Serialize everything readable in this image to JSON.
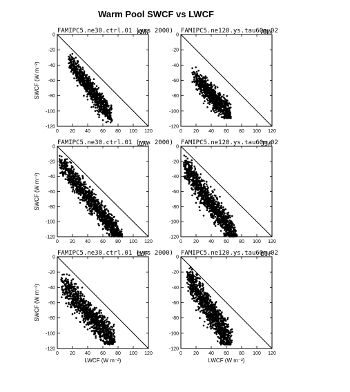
{
  "figure_title": "Warm Pool SWCF vs LWCF",
  "x_axis_label": "LWCF (W m⁻²)",
  "y_axis_label": "SWCF (W m⁻²)",
  "chart_data": [
    {
      "type": "scatter",
      "panel": "ctrl-ANN",
      "title_left": "FAMIPC5.ne30.ctrl.01 (yrs 2000)",
      "title_right": "ANN",
      "xlim": [
        0,
        120
      ],
      "ylim": [
        -120,
        0
      ],
      "xticks": [
        0,
        20,
        40,
        60,
        80,
        100,
        120
      ],
      "yticks": [
        0,
        -20,
        -40,
        -60,
        -80,
        -100,
        -120
      ],
      "reference_line": [
        [
          0,
          0
        ],
        [
          120,
          -120
        ]
      ],
      "cloud": {
        "n": 750,
        "x_range": [
          15,
          72
        ],
        "y_range": [
          -32,
          -115
        ],
        "center_line": [
          [
            16,
            -33
          ],
          [
            70,
            -104
          ]
        ],
        "spread": 7
      },
      "points": [
        [
          15,
          -32
        ],
        [
          16,
          -33
        ],
        [
          18,
          -37
        ],
        [
          20,
          -40
        ],
        [
          22,
          -42
        ],
        [
          25,
          -46
        ],
        [
          28,
          -50
        ],
        [
          30,
          -54
        ],
        [
          33,
          -58
        ],
        [
          35,
          -62
        ],
        [
          38,
          -66
        ],
        [
          40,
          -70
        ],
        [
          43,
          -74
        ],
        [
          45,
          -78
        ],
        [
          48,
          -82
        ],
        [
          50,
          -86
        ],
        [
          53,
          -90
        ],
        [
          55,
          -94
        ],
        [
          58,
          -98
        ],
        [
          60,
          -100
        ],
        [
          62,
          -103
        ],
        [
          65,
          -106
        ],
        [
          68,
          -108
        ],
        [
          72,
          -112
        ],
        [
          40,
          -85
        ],
        [
          45,
          -95
        ],
        [
          50,
          -100
        ],
        [
          55,
          -108
        ],
        [
          35,
          -80
        ],
        [
          60,
          -112
        ]
      ]
    },
    {
      "type": "scatter",
      "panel": "exp-ANN",
      "title_left": "FAMIPC5.ne120.ys.tau60m.02",
      "title_right": "ANN",
      "xlim": [
        0,
        120
      ],
      "ylim": [
        -120,
        0
      ],
      "xticks": [
        0,
        20,
        40,
        60,
        80,
        100,
        120
      ],
      "yticks": [
        0,
        -20,
        -40,
        -60,
        -80,
        -100,
        -120
      ],
      "reference_line": [
        [
          0,
          0
        ],
        [
          120,
          -120
        ]
      ],
      "cloud": {
        "n": 750,
        "x_range": [
          15,
          66
        ],
        "y_range": [
          -50,
          -110
        ],
        "center_line": [
          [
            17,
            -52
          ],
          [
            64,
            -102
          ]
        ],
        "spread": 8
      },
      "points": [
        [
          15,
          -50
        ],
        [
          17,
          -52
        ],
        [
          20,
          -55
        ],
        [
          22,
          -60
        ],
        [
          25,
          -65
        ],
        [
          28,
          -68
        ],
        [
          30,
          -72
        ],
        [
          33,
          -75
        ],
        [
          35,
          -80
        ],
        [
          38,
          -83
        ],
        [
          40,
          -86
        ],
        [
          43,
          -90
        ],
        [
          45,
          -93
        ],
        [
          48,
          -96
        ],
        [
          50,
          -98
        ],
        [
          53,
          -100
        ],
        [
          55,
          -103
        ],
        [
          58,
          -105
        ],
        [
          60,
          -107
        ],
        [
          63,
          -106
        ],
        [
          65,
          -104
        ],
        [
          30,
          -90
        ],
        [
          35,
          -95
        ],
        [
          40,
          -100
        ],
        [
          45,
          -102
        ],
        [
          25,
          -78
        ]
      ]
    },
    {
      "type": "scatter",
      "panel": "ctrl-JJA",
      "title_left": "FAMIPC5.ne30.ctrl.01 (yrs 2000)",
      "title_right": "JJA",
      "xlim": [
        0,
        120
      ],
      "ylim": [
        -120,
        0
      ],
      "xticks": [
        0,
        20,
        40,
        60,
        80,
        100,
        120
      ],
      "yticks": [
        0,
        -20,
        -40,
        -60,
        -80,
        -100,
        -120
      ],
      "reference_line": [
        [
          0,
          0
        ],
        [
          120,
          -120
        ]
      ],
      "cloud": {
        "n": 1100,
        "x_range": [
          3,
          86
        ],
        "y_range": [
          -17,
          -120
        ],
        "center_line": [
          [
            4,
            -19
          ],
          [
            82,
            -118
          ]
        ],
        "spread": 8
      },
      "points": [
        [
          3,
          -17
        ],
        [
          5,
          -19
        ],
        [
          8,
          -22
        ],
        [
          10,
          -26
        ],
        [
          13,
          -30
        ],
        [
          15,
          -35
        ],
        [
          18,
          -40
        ],
        [
          20,
          -44
        ],
        [
          25,
          -50
        ],
        [
          30,
          -56
        ],
        [
          35,
          -62
        ],
        [
          40,
          -68
        ],
        [
          45,
          -74
        ],
        [
          50,
          -80
        ],
        [
          55,
          -86
        ],
        [
          60,
          -92
        ],
        [
          65,
          -98
        ],
        [
          70,
          -104
        ],
        [
          75,
          -110
        ],
        [
          80,
          -115
        ],
        [
          85,
          -118
        ],
        [
          20,
          -60
        ],
        [
          30,
          -75
        ],
        [
          40,
          -85
        ],
        [
          55,
          -105
        ],
        [
          60,
          -110
        ]
      ]
    },
    {
      "type": "scatter",
      "panel": "exp-JJA",
      "title_left": "FAMIPC5.ne120.ys.tau60m.02",
      "title_right": "JJA",
      "xlim": [
        0,
        120
      ],
      "ylim": [
        -120,
        0
      ],
      "xticks": [
        0,
        20,
        40,
        60,
        80,
        100,
        120
      ],
      "yticks": [
        0,
        -20,
        -40,
        -60,
        -80,
        -100,
        -120
      ],
      "reference_line": [
        [
          0,
          0
        ],
        [
          120,
          -120
        ]
      ],
      "cloud": {
        "n": 1050,
        "x_range": [
          4,
          74
        ],
        "y_range": [
          -22,
          -120
        ],
        "center_line": [
          [
            5,
            -25
          ],
          [
            70,
            -115
          ]
        ],
        "spread": 10
      },
      "points": [
        [
          4,
          -22
        ],
        [
          6,
          -26
        ],
        [
          8,
          -30
        ],
        [
          10,
          -35
        ],
        [
          13,
          -40
        ],
        [
          15,
          -45
        ],
        [
          18,
          -50
        ],
        [
          20,
          -55
        ],
        [
          25,
          -60
        ],
        [
          30,
          -66
        ],
        [
          35,
          -72
        ],
        [
          40,
          -78
        ],
        [
          45,
          -84
        ],
        [
          50,
          -90
        ],
        [
          55,
          -96
        ],
        [
          60,
          -102
        ],
        [
          65,
          -108
        ],
        [
          70,
          -112
        ],
        [
          74,
          -118
        ],
        [
          20,
          -75
        ],
        [
          25,
          -85
        ],
        [
          30,
          -92
        ],
        [
          15,
          -65
        ],
        [
          45,
          -100
        ]
      ]
    },
    {
      "type": "scatter",
      "panel": "ctrl-DJF",
      "title_left": "FAMIPC5.ne30.ctrl.01 (yrs 2000)",
      "title_right": "DJF",
      "xlim": [
        0,
        120
      ],
      "ylim": [
        -120,
        0
      ],
      "xticks": [
        0,
        20,
        40,
        60,
        80,
        100,
        120
      ],
      "yticks": [
        0,
        -20,
        -40,
        -60,
        -80,
        -100,
        -120
      ],
      "reference_line": [
        [
          0,
          0
        ],
        [
          120,
          -120
        ]
      ],
      "cloud": {
        "n": 1000,
        "x_range": [
          5,
          76
        ],
        "y_range": [
          -30,
          -115
        ],
        "center_line": [
          [
            7,
            -33
          ],
          [
            74,
            -108
          ]
        ],
        "spread": 10
      },
      "points": [
        [
          5,
          -30
        ],
        [
          7,
          -33
        ],
        [
          10,
          -36
        ],
        [
          12,
          -40
        ],
        [
          15,
          -44
        ],
        [
          18,
          -48
        ],
        [
          20,
          -52
        ],
        [
          25,
          -57
        ],
        [
          30,
          -62
        ],
        [
          35,
          -67
        ],
        [
          40,
          -72
        ],
        [
          45,
          -77
        ],
        [
          50,
          -82
        ],
        [
          55,
          -87
        ],
        [
          60,
          -92
        ],
        [
          65,
          -97
        ],
        [
          70,
          -103
        ],
        [
          75,
          -108
        ],
        [
          15,
          -60
        ],
        [
          20,
          -75
        ],
        [
          25,
          -80
        ],
        [
          30,
          -85
        ],
        [
          40,
          -95
        ],
        [
          50,
          -100
        ],
        [
          60,
          -110
        ]
      ]
    },
    {
      "type": "scatter",
      "panel": "exp-DJF",
      "title_left": "FAMIPC5.ne120.ys.tau60m.02",
      "title_right": "DJF",
      "xlim": [
        0,
        120
      ],
      "ylim": [
        -120,
        0
      ],
      "xticks": [
        0,
        20,
        40,
        60,
        80,
        100,
        120
      ],
      "yticks": [
        0,
        -20,
        -40,
        -60,
        -80,
        -100,
        -120
      ],
      "reference_line": [
        [
          0,
          0
        ],
        [
          120,
          -120
        ]
      ],
      "cloud": {
        "n": 1000,
        "x_range": [
          8,
          68
        ],
        "y_range": [
          -20,
          -115
        ],
        "center_line": [
          [
            10,
            -25
          ],
          [
            65,
            -108
          ]
        ],
        "spread": 11
      },
      "points": [
        [
          8,
          -20
        ],
        [
          10,
          -25
        ],
        [
          12,
          -30
        ],
        [
          15,
          -38
        ],
        [
          18,
          -45
        ],
        [
          20,
          -50
        ],
        [
          22,
          -55
        ],
        [
          25,
          -60
        ],
        [
          28,
          -65
        ],
        [
          30,
          -70
        ],
        [
          33,
          -75
        ],
        [
          35,
          -78
        ],
        [
          38,
          -82
        ],
        [
          40,
          -86
        ],
        [
          43,
          -90
        ],
        [
          45,
          -94
        ],
        [
          48,
          -98
        ],
        [
          50,
          -100
        ],
        [
          55,
          -105
        ],
        [
          60,
          -108
        ],
        [
          65,
          -110
        ],
        [
          15,
          -55
        ],
        [
          20,
          -70
        ],
        [
          25,
          -80
        ],
        [
          30,
          -90
        ]
      ]
    }
  ]
}
